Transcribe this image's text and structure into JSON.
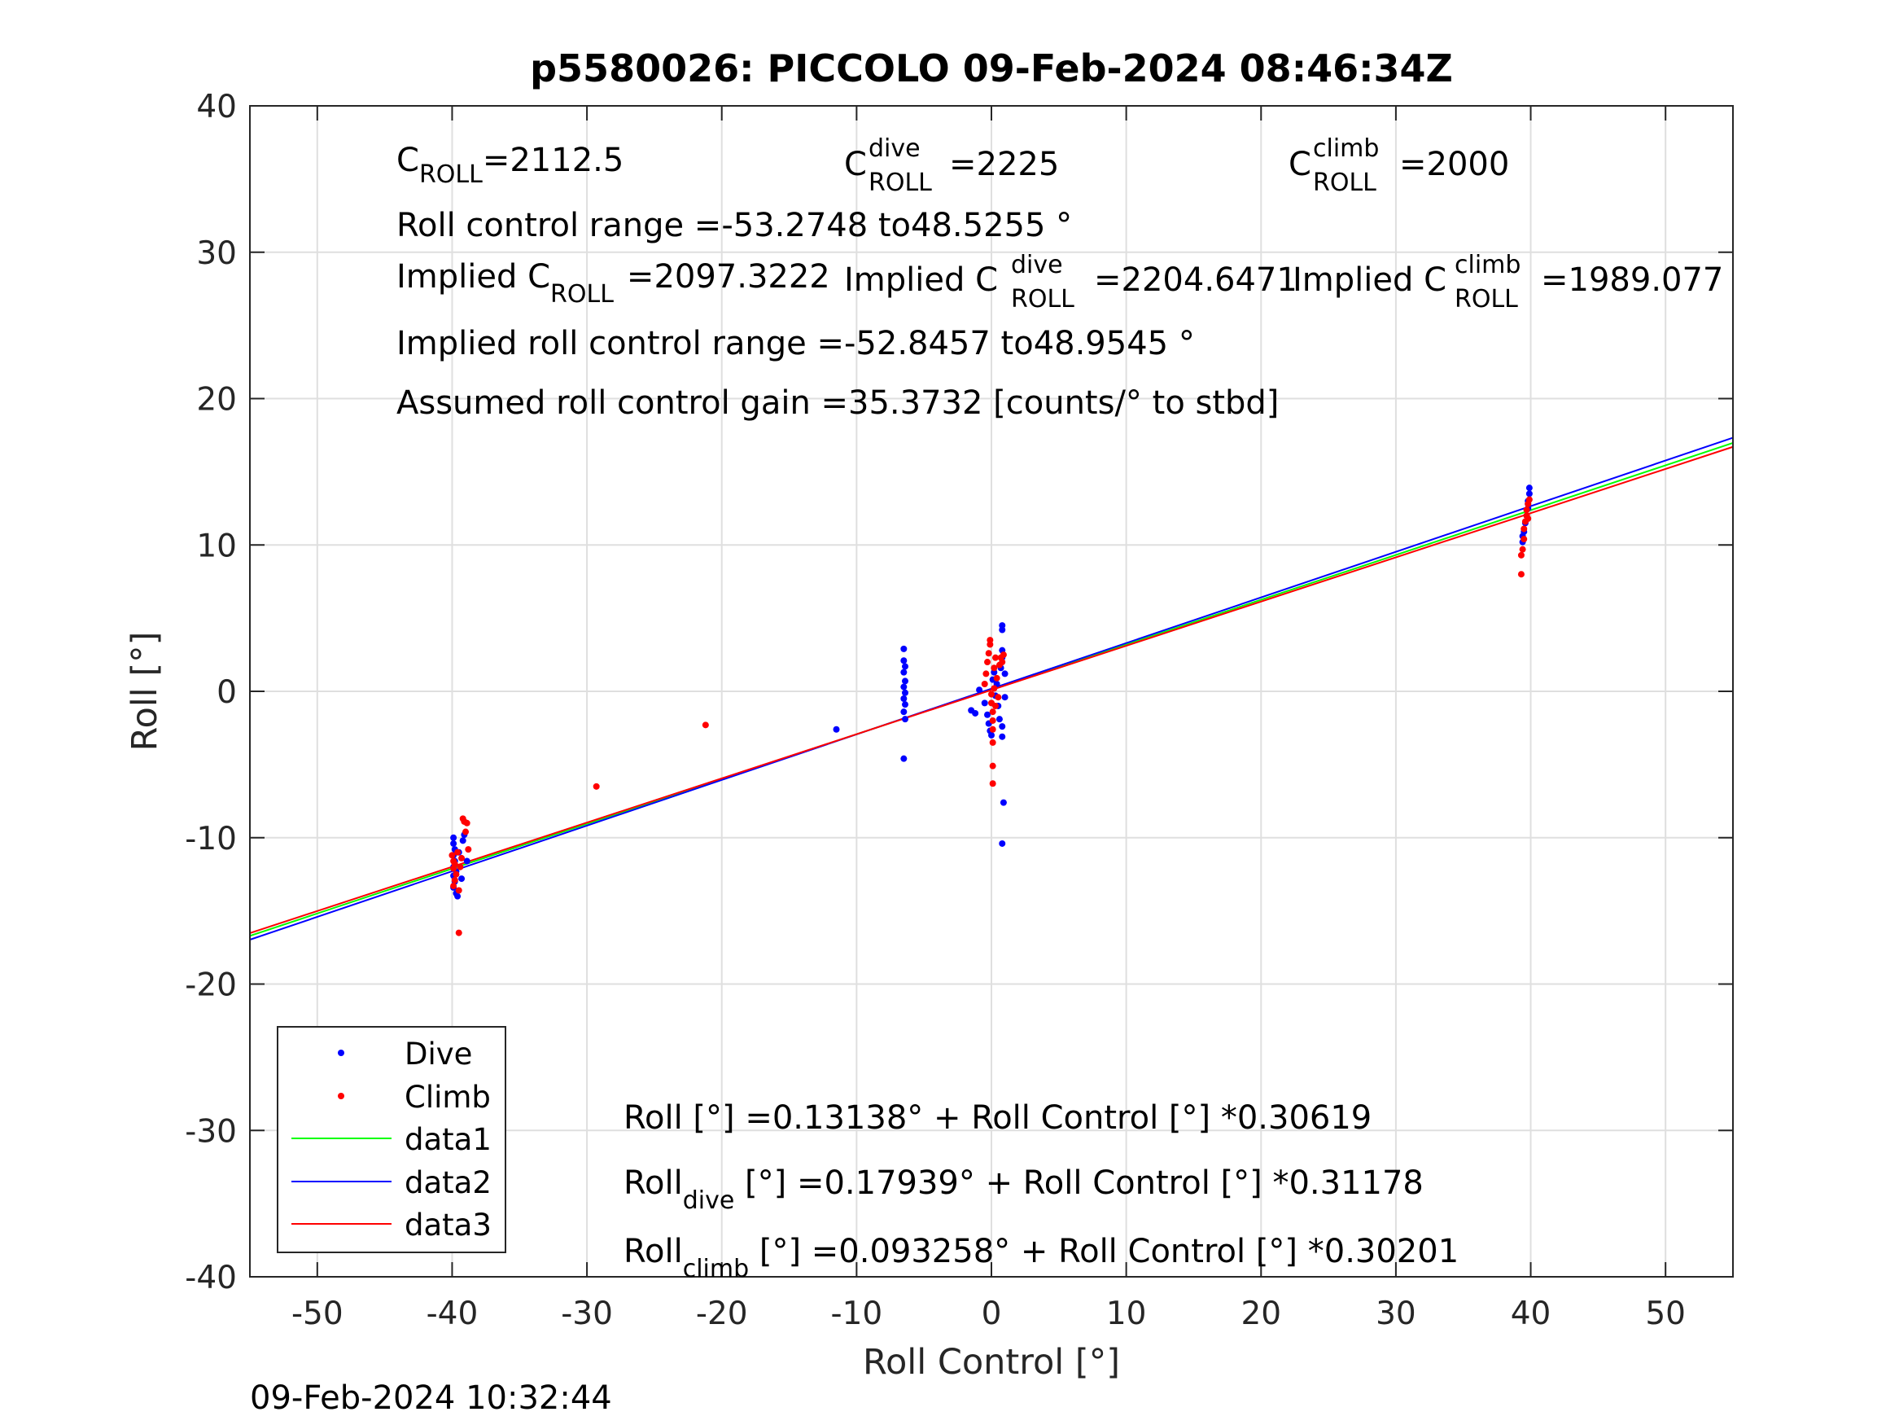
{
  "chart_data": {
    "type": "scatter",
    "title": "p5580026: PICCOLO 09-Feb-2024 08:46:34Z",
    "xlabel": "Roll Control [°]",
    "ylabel": "Roll [°]",
    "xlim": [
      -55,
      55
    ],
    "ylim": [
      -40,
      40
    ],
    "xticks": [
      "-50",
      "-40",
      "-30",
      "-20",
      "-10",
      "0",
      "10",
      "20",
      "30",
      "40",
      "50"
    ],
    "yticks": [
      "40",
      "30",
      "20",
      "10",
      "0",
      "-10",
      "-20",
      "-30",
      "-40"
    ],
    "grid": true,
    "legend_position": "bottom-left",
    "timestamp": "09-Feb-2024 10:32:44",
    "annotations": {
      "c_roll": {
        "base": "C",
        "sub": "ROLL",
        "value": "=2112.5"
      },
      "c_roll_dive": {
        "base": "C",
        "sup": "dive",
        "sub": "ROLL",
        "value": "=2225"
      },
      "c_roll_climb": {
        "base": "C",
        "sup": "climb",
        "sub": "ROLL",
        "value": "=2000"
      },
      "roll_range": "Roll control range =-53.2748 to48.5255 °",
      "implied_c_roll": {
        "prefix": "Implied C",
        "sub": "ROLL",
        "value": "=2097.3222"
      },
      "implied_c_roll_dive": {
        "prefix": "Implied C",
        "sup": "dive",
        "sub": "ROLL",
        "value": "=2204.6471"
      },
      "implied_c_roll_climb": {
        "prefix": "Implied C",
        "sup": "climb",
        "sub": "ROLL",
        "value": "=1989.077"
      },
      "implied_range": "Implied roll control range =-52.8457 to48.9545 °",
      "gain": "Assumed roll control gain =35.3732 [counts/° to stbd]",
      "eq_all": "Roll [°] =0.13138° + Roll Control [°] *0.30619",
      "eq_dive": {
        "prefix": "Roll",
        "sub": "dive",
        "rest": " [°] =0.17939° + Roll Control [°] *0.31178"
      },
      "eq_climb": {
        "prefix": "Roll",
        "sub": "climb",
        "rest": " [°] =0.093258° + Roll Control [°] *0.30201"
      }
    },
    "series": [
      {
        "name": "Dive",
        "kind": "points",
        "color": "#0000ff",
        "points": [
          [
            -39.9,
            -10.0
          ],
          [
            -39.9,
            -10.4
          ],
          [
            -39.8,
            -10.8
          ],
          [
            -39.9,
            -11.2
          ],
          [
            -39.8,
            -11.6
          ],
          [
            -39.9,
            -12.0
          ],
          [
            -39.7,
            -12.3
          ],
          [
            -39.9,
            -12.6
          ],
          [
            -39.8,
            -13.0
          ],
          [
            -39.9,
            -13.4
          ],
          [
            -39.7,
            -13.8
          ],
          [
            -39.6,
            -14.0
          ],
          [
            -39.5,
            -11.0
          ],
          [
            -39.3,
            -12.8
          ],
          [
            -39.2,
            -10.2
          ],
          [
            -39.1,
            -9.8
          ],
          [
            -38.9,
            -11.6
          ],
          [
            -11.5,
            -2.6
          ],
          [
            -6.5,
            2.9
          ],
          [
            -6.5,
            2.1
          ],
          [
            -6.4,
            1.7
          ],
          [
            -6.5,
            1.3
          ],
          [
            -6.4,
            0.7
          ],
          [
            -6.5,
            0.3
          ],
          [
            -6.4,
            -0.1
          ],
          [
            -6.5,
            -0.5
          ],
          [
            -6.4,
            -0.9
          ],
          [
            -6.5,
            -1.4
          ],
          [
            -6.4,
            -1.9
          ],
          [
            -6.5,
            -4.6
          ],
          [
            -1.5,
            -1.3
          ],
          [
            -1.2,
            -1.5
          ],
          [
            -0.9,
            0.1
          ],
          [
            -0.5,
            -0.8
          ],
          [
            -0.3,
            -1.6
          ],
          [
            -0.2,
            -2.2
          ],
          [
            -0.1,
            -2.7
          ],
          [
            0.0,
            -3.0
          ],
          [
            0.1,
            0.8
          ],
          [
            0.2,
            1.3
          ],
          [
            0.3,
            -0.3
          ],
          [
            0.4,
            0.5
          ],
          [
            0.5,
            -1.0
          ],
          [
            0.6,
            -1.9
          ],
          [
            0.7,
            1.6
          ],
          [
            0.8,
            2.3
          ],
          [
            0.8,
            2.8
          ],
          [
            0.8,
            4.2
          ],
          [
            0.8,
            4.5
          ],
          [
            0.8,
            -2.4
          ],
          [
            0.8,
            -3.1
          ],
          [
            0.9,
            -7.6
          ],
          [
            0.8,
            -10.4
          ],
          [
            1.0,
            1.2
          ],
          [
            1.0,
            -0.4
          ],
          [
            39.4,
            10.6
          ],
          [
            39.4,
            10.2
          ],
          [
            39.5,
            10.9
          ],
          [
            39.6,
            11.5
          ],
          [
            39.7,
            12.0
          ],
          [
            39.8,
            12.5
          ],
          [
            39.8,
            13.0
          ],
          [
            39.9,
            13.5
          ],
          [
            39.9,
            13.9
          ],
          [
            39.8,
            12.8
          ]
        ]
      },
      {
        "name": "Climb",
        "kind": "points",
        "color": "#ff0000",
        "points": [
          [
            -40.0,
            -11.2
          ],
          [
            -39.9,
            -11.6
          ],
          [
            -39.8,
            -11.8
          ],
          [
            -39.9,
            -12.1
          ],
          [
            -39.7,
            -12.5
          ],
          [
            -39.8,
            -12.9
          ],
          [
            -39.9,
            -13.3
          ],
          [
            -39.6,
            -11.0
          ],
          [
            -39.5,
            -13.6
          ],
          [
            -39.5,
            -16.5
          ],
          [
            -39.4,
            -12.0
          ],
          [
            -39.2,
            -8.7
          ],
          [
            -39.1,
            -8.9
          ],
          [
            -39.0,
            -9.6
          ],
          [
            -38.9,
            -9.0
          ],
          [
            -38.8,
            -10.8
          ],
          [
            -39.3,
            -11.4
          ],
          [
            -29.3,
            -6.5
          ],
          [
            -21.2,
            -2.3
          ],
          [
            -0.5,
            0.5
          ],
          [
            -0.4,
            1.2
          ],
          [
            -0.3,
            2.0
          ],
          [
            -0.2,
            2.6
          ],
          [
            -0.1,
            3.2
          ],
          [
            -0.1,
            3.5
          ],
          [
            0.0,
            -0.2
          ],
          [
            0.0,
            -0.8
          ],
          [
            0.1,
            -1.4
          ],
          [
            0.1,
            -2.0
          ],
          [
            0.1,
            -2.6
          ],
          [
            0.1,
            -3.5
          ],
          [
            0.1,
            -5.1
          ],
          [
            0.1,
            -6.3
          ],
          [
            0.2,
            0.2
          ],
          [
            0.2,
            1.6
          ],
          [
            0.3,
            2.3
          ],
          [
            0.3,
            -1.0
          ],
          [
            0.4,
            0.9
          ],
          [
            0.5,
            -0.4
          ],
          [
            0.6,
            1.8
          ],
          [
            0.7,
            2.3
          ],
          [
            0.8,
            2.0
          ],
          [
            0.9,
            2.5
          ],
          [
            39.3,
            8.0
          ],
          [
            39.3,
            9.3
          ],
          [
            39.4,
            9.7
          ],
          [
            39.5,
            10.4
          ],
          [
            39.5,
            11.1
          ],
          [
            39.6,
            11.6
          ],
          [
            39.7,
            12.0
          ],
          [
            39.7,
            12.4
          ],
          [
            39.8,
            12.8
          ],
          [
            39.9,
            13.1
          ],
          [
            39.8,
            11.8
          ]
        ]
      },
      {
        "name": "data1",
        "kind": "line",
        "color": "#00ff00",
        "intercept": 0.13138,
        "slope": 0.30619
      },
      {
        "name": "data2",
        "kind": "line",
        "color": "#0000ff",
        "intercept": 0.17939,
        "slope": 0.31178
      },
      {
        "name": "data3",
        "kind": "line",
        "color": "#ff0000",
        "intercept": 0.093258,
        "slope": 0.30201
      }
    ]
  }
}
